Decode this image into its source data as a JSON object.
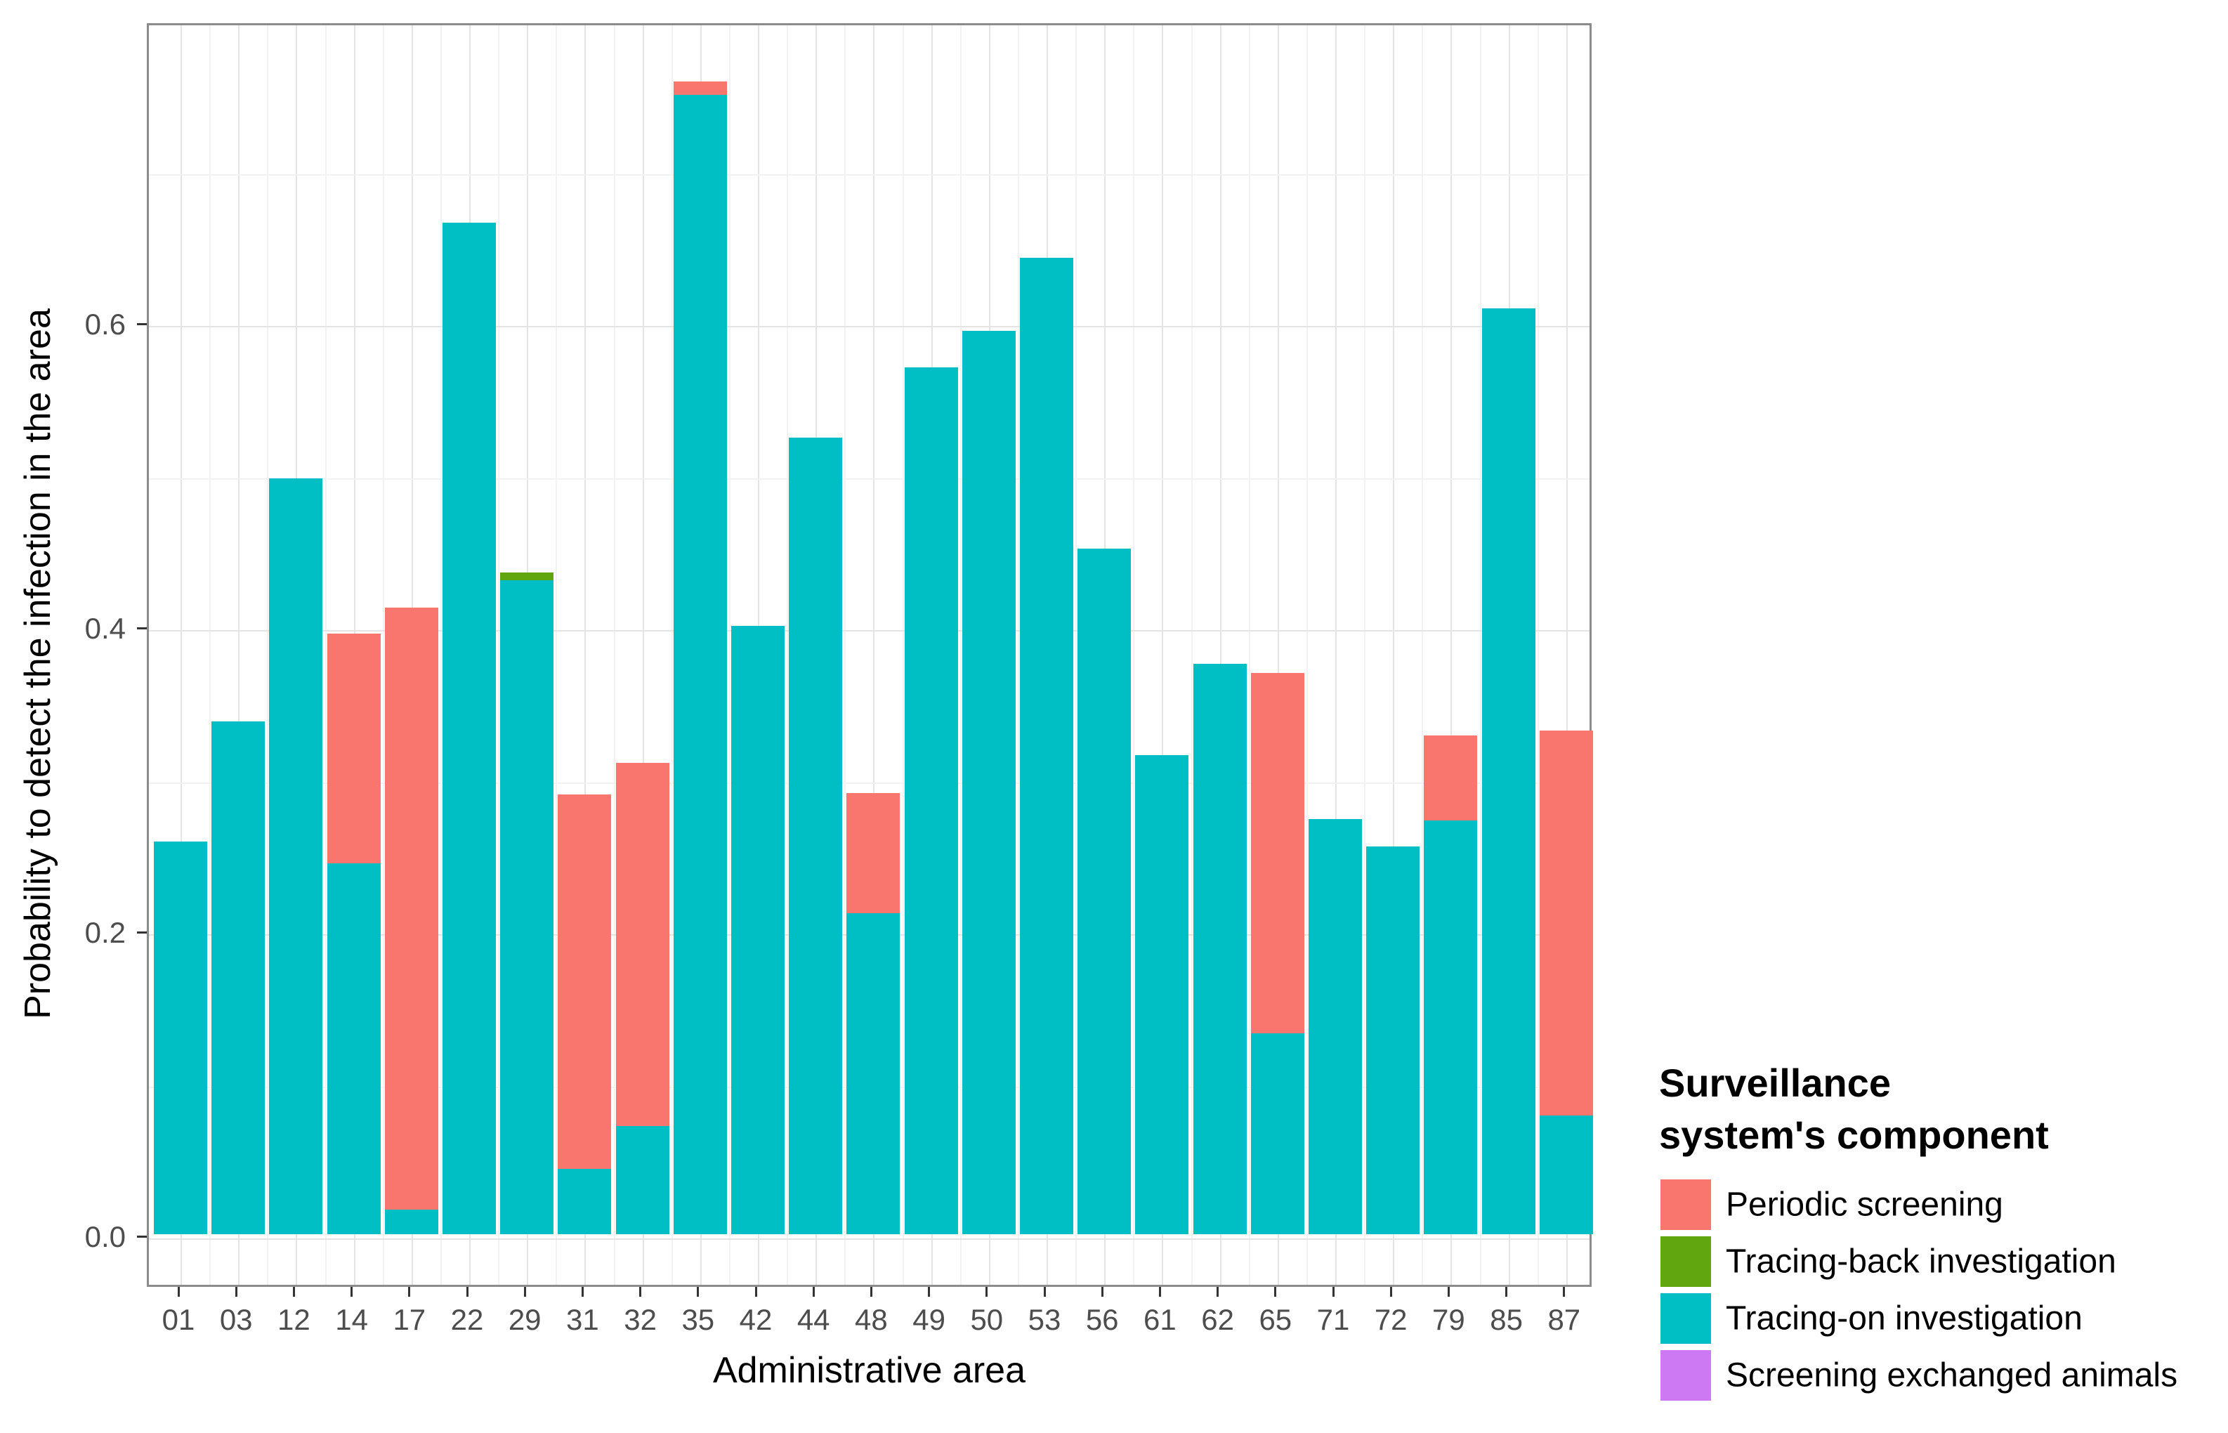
{
  "page": {
    "background": "#ffffff"
  },
  "chart_data": {
    "type": "bar",
    "stacked": true,
    "stack_order": "bottom-to-top",
    "title": "",
    "xlabel": "Administrative area",
    "ylabel": "Probability to detect the infection in the area",
    "categories": [
      "01",
      "03",
      "12",
      "14",
      "17",
      "22",
      "29",
      "31",
      "32",
      "35",
      "42",
      "44",
      "48",
      "49",
      "50",
      "53",
      "56",
      "61",
      "62",
      "65",
      "71",
      "72",
      "79",
      "85",
      "87"
    ],
    "series": [
      {
        "name": "Screening exchanged animals",
        "color": "#CD79F4",
        "values": [
          0,
          0,
          0,
          0,
          0,
          0,
          0,
          0,
          0,
          0,
          0,
          0,
          0,
          0,
          0,
          0,
          0,
          0,
          0,
          0,
          0,
          0,
          0,
          0,
          0
        ]
      },
      {
        "name": "Tracing-on investigation",
        "color": "#00BFC4",
        "values": [
          0.258,
          0.337,
          0.497,
          0.244,
          0.016,
          0.665,
          0.43,
          0.043,
          0.071,
          0.749,
          0.4,
          0.524,
          0.211,
          0.57,
          0.594,
          0.642,
          0.451,
          0.315,
          0.375,
          0.132,
          0.273,
          0.255,
          0.272,
          0.609,
          0.078
        ]
      },
      {
        "name": "Tracing-back investigation",
        "color": "#61A60E",
        "values": [
          0,
          0,
          0,
          0,
          0,
          0,
          0.005,
          0,
          0,
          0,
          0,
          0,
          0,
          0,
          0,
          0,
          0,
          0,
          0,
          0,
          0,
          0,
          0,
          0,
          0
        ]
      },
      {
        "name": "Periodic screening",
        "color": "#F8766D",
        "values": [
          0,
          0,
          0,
          0.151,
          0.396,
          0,
          0,
          0.246,
          0.239,
          0.009,
          0,
          0,
          0.079,
          0,
          0,
          0,
          0,
          0,
          0,
          0.237,
          0,
          0,
          0.056,
          0,
          0.253
        ]
      }
    ],
    "y_ticks": [
      "0.0",
      "0.2",
      "0.4",
      "0.6"
    ],
    "y_minor_gridlines": [
      0.1,
      0.3,
      0.5,
      0.7
    ],
    "ylim": [
      0,
      0.8
    ],
    "grid": true,
    "legend_position": "right"
  },
  "legend": {
    "title_lines": [
      "Surveillance",
      "system's component"
    ],
    "items": [
      {
        "label": "Periodic screening",
        "color": "#F8766D"
      },
      {
        "label": "Tracing-back investigation",
        "color": "#61A60E"
      },
      {
        "label": "Tracing-on investigation",
        "color": "#00BFC4"
      },
      {
        "label": "Screening exchanged animals",
        "color": "#CD79F4"
      }
    ]
  }
}
